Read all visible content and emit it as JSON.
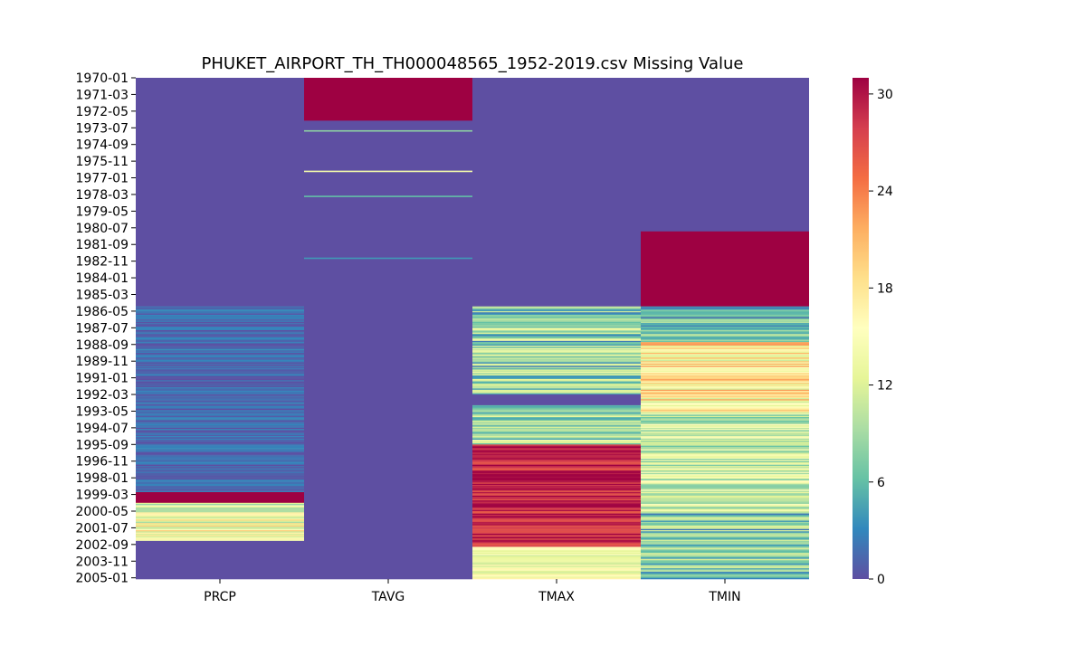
{
  "chart_data": {
    "type": "heatmap",
    "title": "PHUKET_AIRPORT_TH_TH000048565_1952-2019.csv Missing Value",
    "xlabel": "",
    "ylabel": "",
    "x_categories": [
      "PRCP",
      "TAVG",
      "TMAX",
      "TMIN"
    ],
    "y_tick_labels": [
      "1970-01",
      "1971-03",
      "1972-05",
      "1973-07",
      "1974-09",
      "1975-11",
      "1977-01",
      "1978-03",
      "1979-05",
      "1980-07",
      "1981-09",
      "1982-11",
      "1984-01",
      "1985-03",
      "1986-05",
      "1987-07",
      "1988-09",
      "1989-11",
      "1991-01",
      "1992-03",
      "1993-05",
      "1994-07",
      "1995-09",
      "1996-11",
      "1998-01",
      "1999-03",
      "2000-05",
      "2001-07",
      "2002-09",
      "2003-11",
      "2005-01"
    ],
    "y_range": [
      "1970-01",
      "2005-01"
    ],
    "value_range": [
      0,
      31
    ],
    "colorbar_ticks": [
      0,
      6,
      12,
      18,
      24,
      30
    ],
    "colormap": "Spectral_r",
    "colormap_stops": [
      "#5e4fa2",
      "#3288bd",
      "#66c2a5",
      "#abdda4",
      "#e6f598",
      "#ffffbf",
      "#fee08b",
      "#fdae61",
      "#f46d43",
      "#d53e4f",
      "#9e0142"
    ],
    "grid": false,
    "segments": {
      "PRCP": [
        {
          "start": "1970-01",
          "end": "1985-12",
          "value": 0
        },
        {
          "start": "1986-01",
          "end": "1998-12",
          "value": 1.5,
          "variability": 2
        },
        {
          "start": "1999-01",
          "end": "1999-09",
          "value": 31
        },
        {
          "start": "1999-10",
          "end": "2002-05",
          "value": 14,
          "variability": 6
        },
        {
          "start": "2002-06",
          "end": "2005-01",
          "value": 0
        }
      ],
      "TAVG": [
        {
          "start": "1970-01",
          "end": "1972-12",
          "value": 31
        },
        {
          "start": "1973-01",
          "end": "2005-01",
          "value": 0
        },
        {
          "start": "1973-09",
          "end": "1973-09",
          "value": 8
        },
        {
          "start": "1976-07",
          "end": "1976-07",
          "value": 14
        },
        {
          "start": "1978-04",
          "end": "1978-04",
          "value": 6
        },
        {
          "start": "1982-08",
          "end": "1982-08",
          "value": 4
        }
      ],
      "TMAX": [
        {
          "start": "1970-01",
          "end": "1985-12",
          "value": 0
        },
        {
          "start": "1986-01",
          "end": "1992-02",
          "value": 8,
          "variability": 6
        },
        {
          "start": "1992-03",
          "end": "1992-11",
          "value": 0
        },
        {
          "start": "1992-12",
          "end": "1995-08",
          "value": 9,
          "variability": 5
        },
        {
          "start": "1995-09",
          "end": "2002-10",
          "value": 29,
          "variability": 3
        },
        {
          "start": "2002-11",
          "end": "2005-01",
          "value": 14,
          "variability": 3
        }
      ],
      "TMIN": [
        {
          "start": "1970-01",
          "end": "1980-09",
          "value": 0
        },
        {
          "start": "1980-10",
          "end": "1985-12",
          "value": 31
        },
        {
          "start": "1986-01",
          "end": "1988-06",
          "value": 6,
          "variability": 5
        },
        {
          "start": "1988-07",
          "end": "1993-06",
          "value": 17,
          "variability": 6
        },
        {
          "start": "1993-07",
          "end": "2000-05",
          "value": 11,
          "variability": 5
        },
        {
          "start": "2000-06",
          "end": "2005-01",
          "value": 7,
          "variability": 5
        }
      ]
    }
  }
}
